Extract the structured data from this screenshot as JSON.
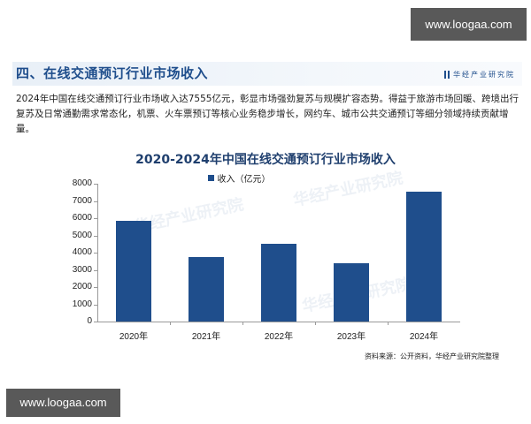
{
  "watermark": {
    "top": "www.loogaa.com",
    "bottom": "www.loogaa.com"
  },
  "section": {
    "title": "四、在线交通预订行业市场收入",
    "brand": "华经产业研究院"
  },
  "description": "2024年中国在线交通预订行业市场收入达7555亿元，彰显市场强劲复苏与规模扩容态势。得益于旅游市场回暖、跨境出行复苏及日常通勤需求常态化，机票、火车票预订等核心业务稳步增长，网约车、城市公共交通预订等细分领域持续贡献增量。",
  "source": "资料来源：公开资料，华经产业研究院整理",
  "background_watermark": "华经产业研究院",
  "chart_data": {
    "type": "bar",
    "title": "2020-2024年中国在线交通预订行业市场收入",
    "categories": [
      "2020年",
      "2021年",
      "2022年",
      "2023年",
      "2024年"
    ],
    "series": [
      {
        "name": "收入（亿元）",
        "values": [
          5846,
          3744,
          4513,
          3385,
          7555
        ],
        "color": "#1f4e8c"
      }
    ],
    "xlabel": "",
    "ylabel": "",
    "ylim": [
      0,
      8000
    ],
    "yticks": [
      0,
      1000,
      2000,
      3000,
      4000,
      5000,
      6000,
      7000,
      8000
    ],
    "grid": false,
    "legend_position": "top"
  }
}
